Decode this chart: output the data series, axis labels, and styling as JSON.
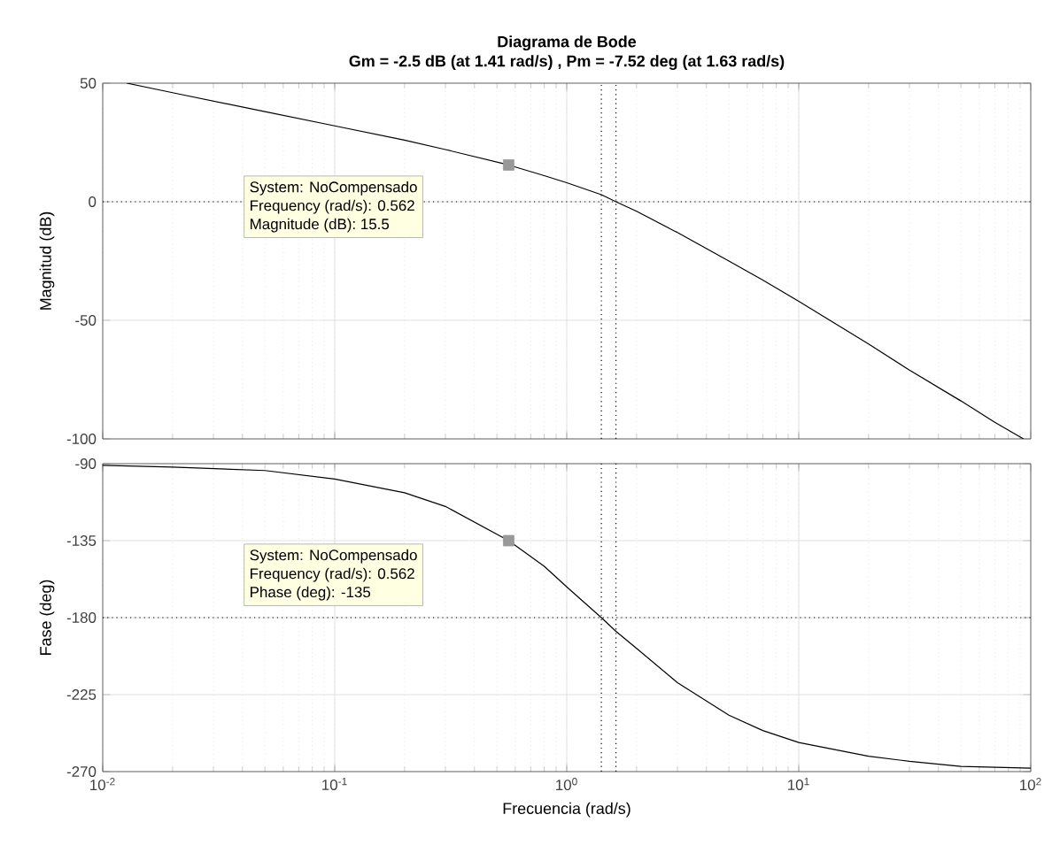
{
  "chart_data": [
    {
      "type": "line",
      "title": "Diagrama de Bode",
      "subtitle": "Gm = -2.5 dB (at 1.41 rad/s) ,  Pm = -7.52 deg (at 1.63 rad/s)",
      "ylabel": "Magnitud (dB)",
      "x": [
        0.0127,
        0.02,
        0.05,
        0.1,
        0.2,
        0.3,
        0.562,
        0.8,
        1,
        1.41,
        1.63,
        2,
        3,
        5,
        7,
        10,
        20,
        30,
        50,
        70,
        93
      ],
      "series": [
        {
          "color": "#000000",
          "values": [
            50,
            46,
            38,
            32,
            26,
            22,
            15.5,
            11,
            8,
            3,
            0,
            -4,
            -13,
            -25,
            -33,
            -42,
            -60,
            -71,
            -84,
            -93,
            -100
          ]
        },
        {
          "type": "scatter",
          "marker": "square",
          "color": "#999999",
          "x": [
            0.562
          ],
          "values": [
            15.5
          ]
        }
      ],
      "xlim": [
        0.01,
        100
      ],
      "ylim": [
        -100,
        50
      ],
      "xticks": [
        {
          "value": 0.01,
          "label": null
        },
        {
          "value": 0.1,
          "label": null
        },
        {
          "value": 1,
          "label": null
        },
        {
          "value": 10,
          "label": null
        },
        {
          "value": 100,
          "label": null
        }
      ],
      "yticks": [
        -100,
        -50,
        0,
        50
      ],
      "log": "x",
      "grid": true,
      "marker": "none",
      "line_style": "solid",
      "tick_labels": "y",
      "ref_lines": [
        {
          "axis": "y",
          "value": 0,
          "line_style": "dotted",
          "color": "#000000"
        },
        {
          "axis": "x",
          "value": 1.41,
          "line_style": "dotted",
          "color": "#000000"
        },
        {
          "axis": "x",
          "value": 1.63,
          "line_style": "dotted",
          "color": "#000000"
        }
      ],
      "annotations": [
        "System: NoCompensado",
        "Frequency (rad/s): 0.562",
        "Magnitude (dB): 15.5"
      ]
    },
    {
      "type": "line",
      "xlabel": "Frecuencia  (rad/s)",
      "ylabel": "Fase (deg)",
      "x": [
        0.01,
        0.02,
        0.05,
        0.1,
        0.2,
        0.3,
        0.562,
        0.8,
        1,
        1.41,
        1.63,
        2,
        3,
        5,
        7,
        10,
        20,
        30,
        50,
        100
      ],
      "series": [
        {
          "color": "#000000",
          "values": [
            -91,
            -92,
            -94,
            -99,
            -107,
            -115,
            -135,
            -150,
            -162,
            -180,
            -188,
            -198,
            -218,
            -237,
            -246,
            -253,
            -261,
            -264,
            -267,
            -268
          ]
        },
        {
          "type": "scatter",
          "marker": "square",
          "color": "#999999",
          "x": [
            0.562
          ],
          "values": [
            -135
          ]
        }
      ],
      "xlim": [
        0.01,
        100
      ],
      "ylim": [
        -270,
        -90
      ],
      "xticks": [
        {
          "value": 0.01,
          "label": "10$^{-2}$"
        },
        {
          "value": 0.1,
          "label": "10$^{-1}$"
        },
        {
          "value": 1,
          "label": "10$^{0}$"
        },
        {
          "value": 10,
          "label": "10$^{1}$"
        },
        {
          "value": 100,
          "label": "10$^{2}$"
        }
      ],
      "yticks": [
        -270,
        -225,
        -180,
        -135,
        -90
      ],
      "log": "x",
      "grid": true,
      "marker": "none",
      "line_style": "solid",
      "ref_lines": [
        {
          "axis": "y",
          "value": -180,
          "line_style": "dotted",
          "color": "#000000"
        },
        {
          "axis": "x",
          "value": 1.41,
          "line_style": "dotted",
          "color": "#000000"
        },
        {
          "axis": "x",
          "value": 1.63,
          "line_style": "dotted",
          "color": "#000000"
        }
      ],
      "annotations": [
        "System: NoCompensado",
        "Frequency (rad/s): 0.562",
        "Phase (deg): -135"
      ]
    }
  ]
}
